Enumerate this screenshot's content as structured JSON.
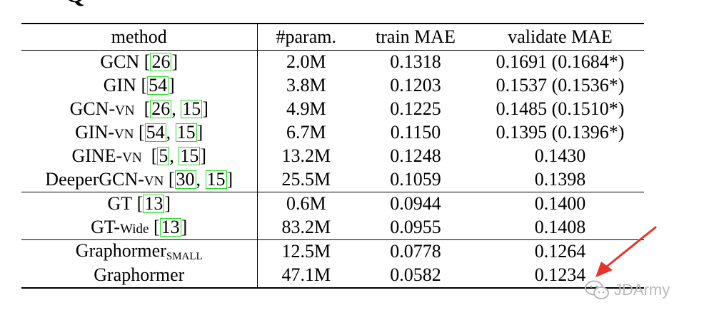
{
  "header_fragment": "Q",
  "table": {
    "headers": [
      "method",
      "#param.",
      "train MAE",
      "validate MAE"
    ],
    "rows": [
      {
        "name": "GCN",
        "suffix": "",
        "suffix_style": "",
        "cites": [
          "26"
        ],
        "params": "2.0M",
        "train": "0.1318",
        "validate": "0.1691 (0.1684*)"
      },
      {
        "name": "GIN",
        "suffix": "",
        "suffix_style": "",
        "cites": [
          "54"
        ],
        "params": "3.8M",
        "train": "0.1203",
        "validate": "0.1537 (0.1536*)"
      },
      {
        "name": "GCN-",
        "suffix": "VN",
        "suffix_style": "smallcaps",
        "cites": [
          "26",
          "15"
        ],
        "params": "4.9M",
        "train": "0.1225",
        "validate": "0.1485 (0.1510*)"
      },
      {
        "name": "GIN-",
        "suffix": "VN",
        "suffix_style": "smallcaps",
        "cites": [
          "54",
          "15"
        ],
        "params": "6.7M",
        "train": "0.1150",
        "validate": "0.1395 (0.1396*)"
      },
      {
        "name": "GINE-",
        "suffix": "VN",
        "suffix_style": "smallcaps",
        "cites": [
          "5",
          "15"
        ],
        "params": "13.2M",
        "train": "0.1248",
        "validate": "0.1430"
      },
      {
        "name": "DeeperGCN-",
        "suffix": "VN",
        "suffix_style": "smallcaps",
        "cites": [
          "30",
          "15"
        ],
        "params": "25.5M",
        "train": "0.1059",
        "validate": "0.1398"
      },
      {
        "name": "GT",
        "suffix": "",
        "suffix_style": "",
        "cites": [
          "13"
        ],
        "params": "0.6M",
        "train": "0.0944",
        "validate": "0.1400",
        "group_start": true
      },
      {
        "name": "GT-",
        "suffix": "Wide",
        "suffix_style": "small",
        "cites": [
          "13"
        ],
        "params": "83.2M",
        "train": "0.0955",
        "validate": "0.1408"
      },
      {
        "name": "Graphormer",
        "suffix": "SMALL",
        "suffix_style": "subscript",
        "cites": [],
        "params": "12.5M",
        "train": "0.0778",
        "validate": "0.1264",
        "group_start": true
      },
      {
        "name": "Graphormer",
        "suffix": "",
        "suffix_style": "",
        "cites": [],
        "params": "47.1M",
        "train": "0.0582",
        "validate": "0.1234",
        "bold": true
      }
    ]
  },
  "annotation": {
    "arrow_color": "#e8332a",
    "target": "validate MAE of Graphormer"
  },
  "watermark": {
    "text": "JDArmy",
    "icon": "wechat-icon",
    "color": "#b9b9b9"
  }
}
